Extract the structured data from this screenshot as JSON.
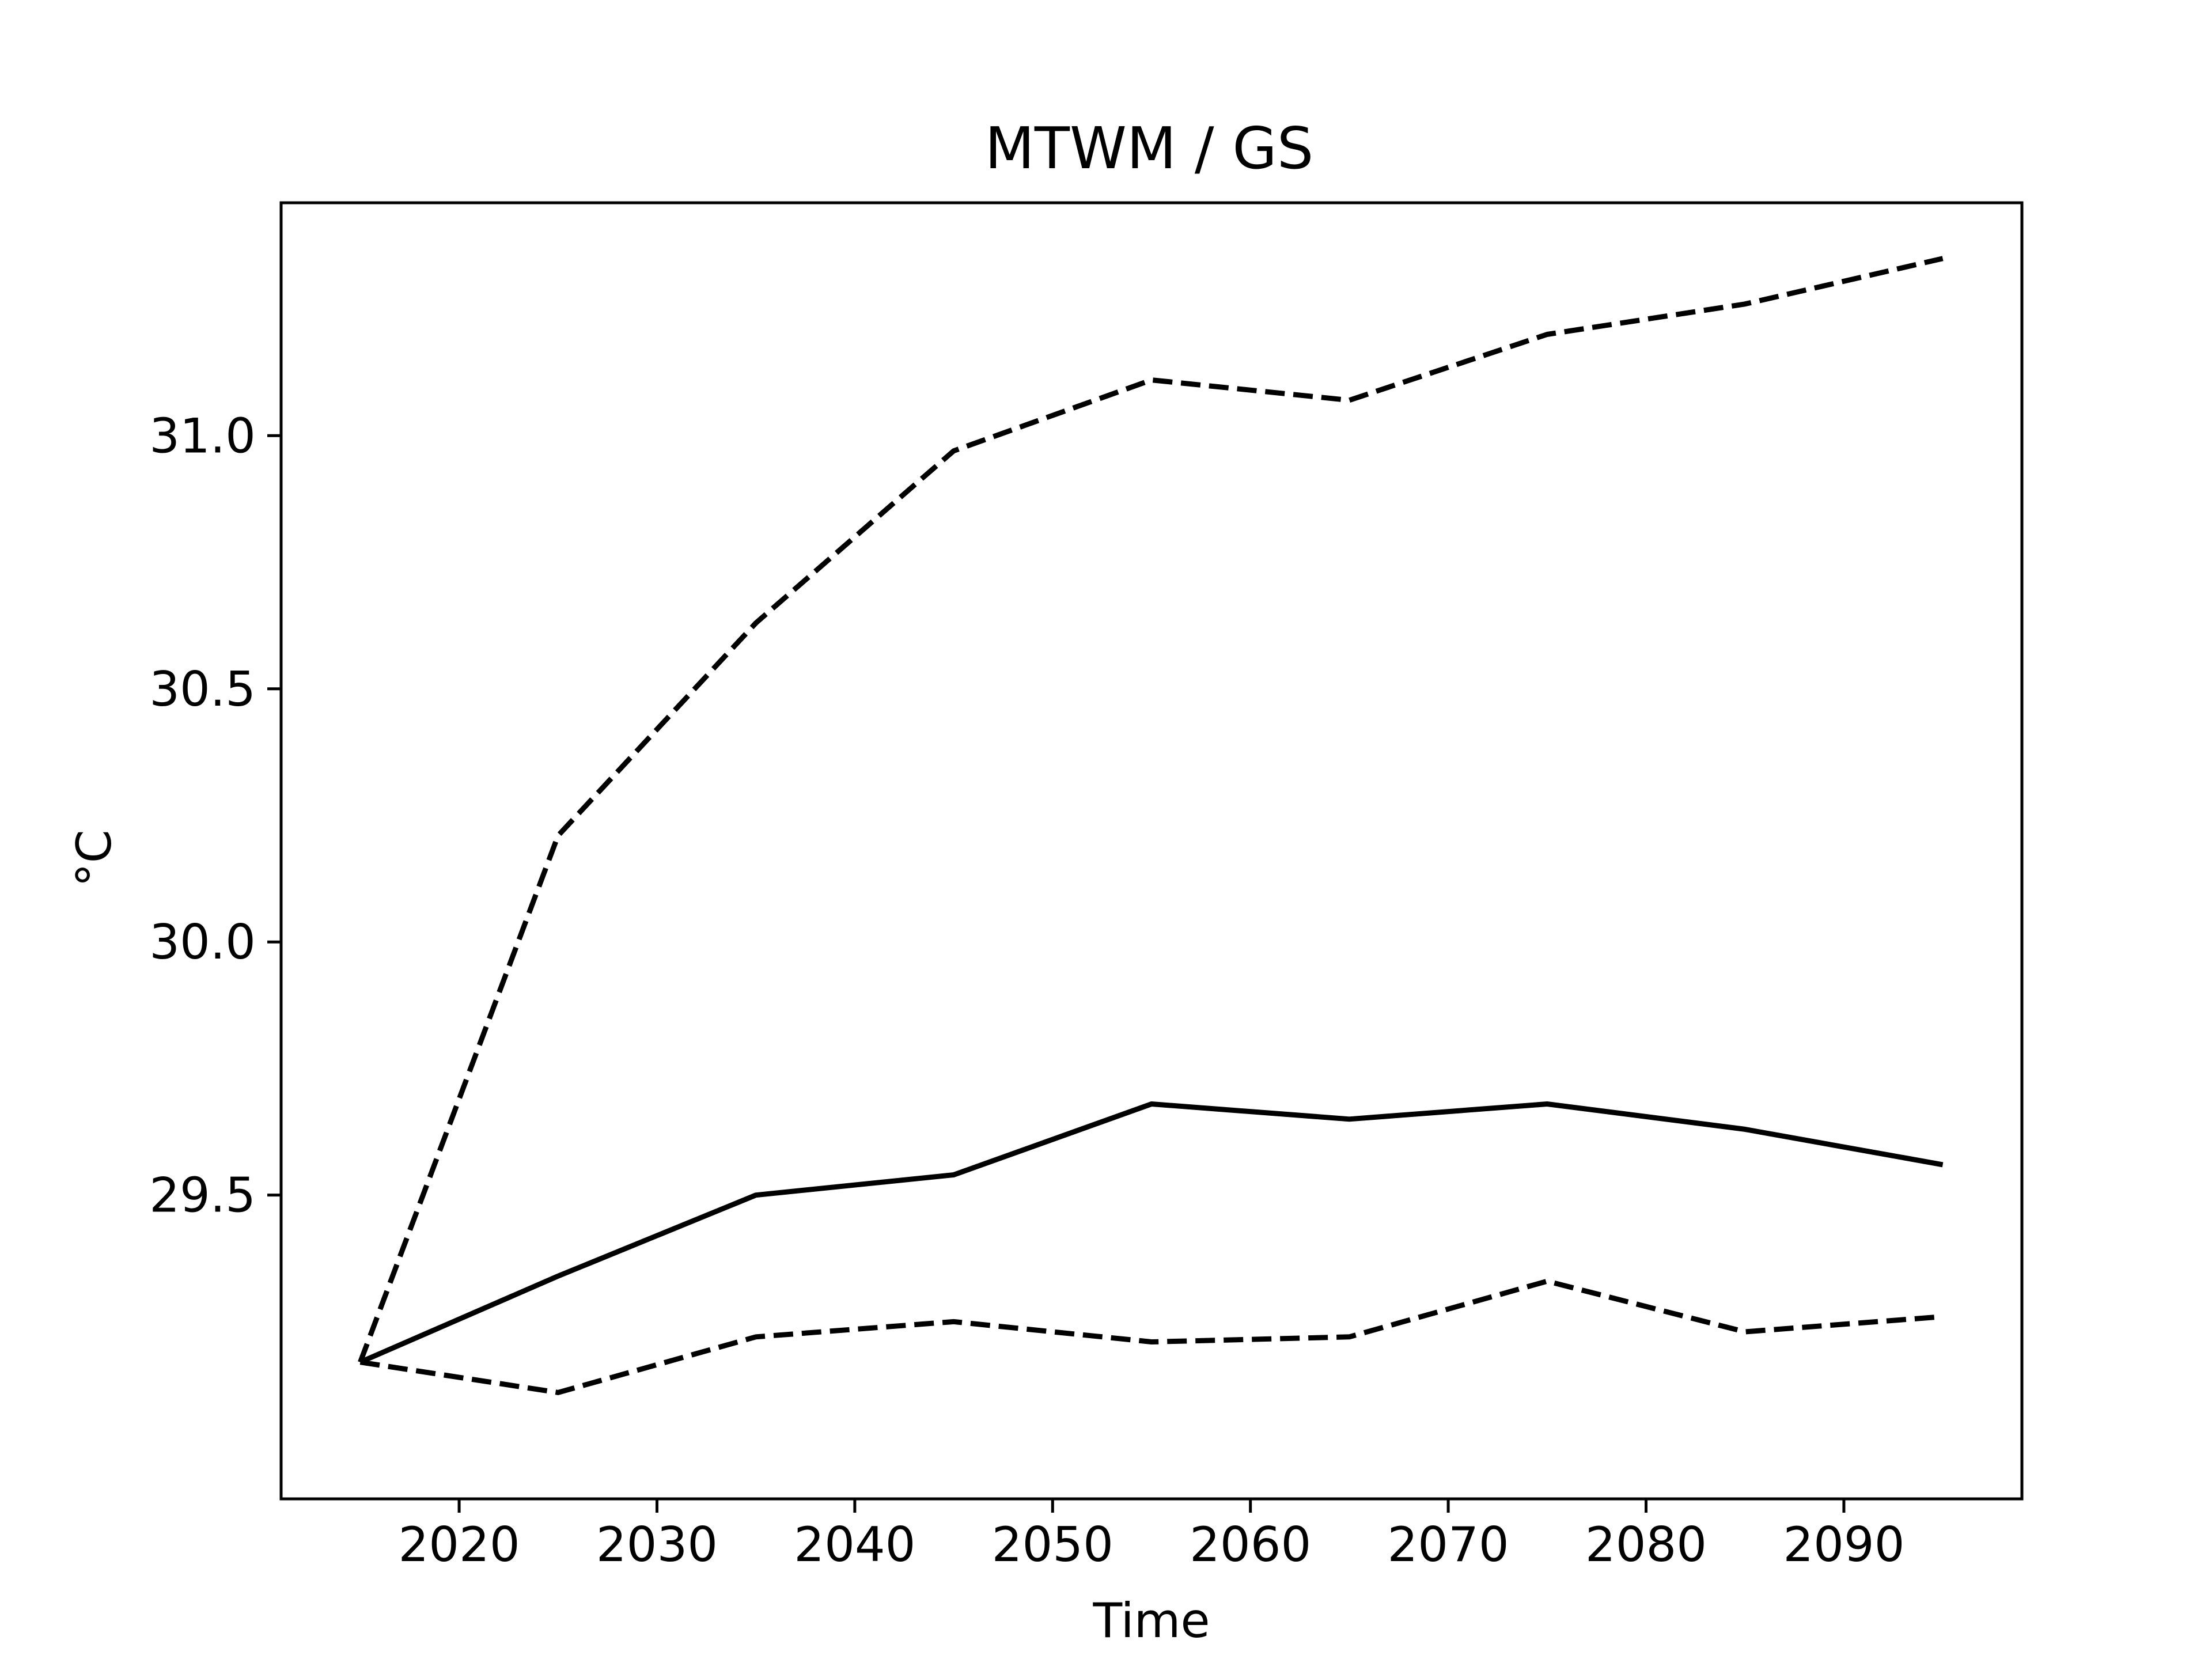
{
  "chart_data": {
    "type": "line",
    "title": "MTWM / GS",
    "xlabel": "Time",
    "ylabel": "°C",
    "xlim": [
      2011,
      2099
    ],
    "ylim": [
      28.9,
      31.46
    ],
    "x_ticks": [
      2020,
      2030,
      2040,
      2050,
      2060,
      2070,
      2080,
      2090
    ],
    "y_ticks": [
      29.5,
      30.0,
      30.5,
      31.0
    ],
    "y_tick_labels": [
      "29.5",
      "30.0",
      "30.5",
      "31.0"
    ],
    "grid": false,
    "x": [
      2015,
      2025,
      2035,
      2045,
      2055,
      2065,
      2075,
      2085,
      2095
    ],
    "series": [
      {
        "style": "dashed",
        "color": "#000000",
        "values": [
          29.17,
          30.21,
          30.63,
          30.97,
          31.11,
          31.07,
          31.2,
          31.26,
          31.35
        ]
      },
      {
        "style": "solid",
        "color": "#000000",
        "values": [
          29.17,
          29.34,
          29.5,
          29.54,
          29.68,
          29.65,
          29.68,
          29.63,
          29.56
        ]
      },
      {
        "style": "dashed",
        "color": "#000000",
        "values": [
          29.17,
          29.11,
          29.22,
          29.25,
          29.21,
          29.22,
          29.33,
          29.23,
          29.26
        ]
      }
    ]
  }
}
